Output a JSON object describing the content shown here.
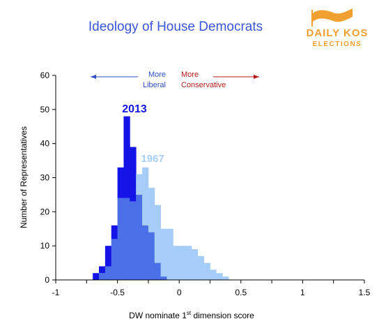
{
  "colors": {
    "series_2013": "#1414e6",
    "series_1967": "#a6cdf7",
    "overlap": "#4a6fe6",
    "title": "#3b55d9",
    "liberal": "#2e4fbf",
    "conservative": "#b31a1a",
    "logo": "#f0a030"
  },
  "logo": {
    "line1": "DAILY KOS",
    "line2": "ELECTIONS",
    "icon": "flag-icon"
  },
  "chart_data": {
    "type": "bar",
    "title": "Ideology of House Democrats",
    "xlabel_main": "DW nominate 1",
    "xlabel_sup": "st",
    "xlabel_rest": " dimension score",
    "ylabel": "Number of Representatives",
    "xlim": [
      -1,
      1.5
    ],
    "ylim": [
      0,
      60
    ],
    "xticks": [
      -1,
      -0.5,
      0,
      0.5,
      1,
      1.5
    ],
    "xtick_labels": [
      "-1",
      "-0.5",
      "0",
      "0.5",
      "1",
      "1.5"
    ],
    "yticks": [
      0,
      10,
      20,
      30,
      40,
      50,
      60
    ],
    "bin_width": 0.05,
    "bin_starts": [
      -0.75,
      -0.7,
      -0.65,
      -0.6,
      -0.55,
      -0.5,
      -0.45,
      -0.4,
      -0.35,
      -0.3,
      -0.25,
      -0.2,
      -0.15,
      -0.1,
      -0.05,
      0.0,
      0.05,
      0.1,
      0.15,
      0.2,
      0.25,
      0.3,
      0.35,
      0.4
    ],
    "series": [
      {
        "name": "2013",
        "values": [
          0,
          2,
          4,
          10,
          16,
          33,
          48,
          39,
          25,
          16,
          14,
          5,
          1,
          0,
          0,
          0,
          0,
          0,
          0,
          0,
          0,
          0,
          0,
          0
        ]
      },
      {
        "name": "1967",
        "values": [
          0,
          0,
          2,
          4,
          12,
          24,
          24,
          23,
          31,
          33,
          27,
          22,
          15,
          15,
          10,
          10,
          10,
          9,
          7,
          5,
          3,
          2,
          1,
          0
        ]
      }
    ],
    "series_labels": {
      "s2013": "2013",
      "s1967": "1967"
    },
    "annotations": {
      "liberal_line1": "More",
      "liberal_line2": "Liberal",
      "conservative_line1": "More",
      "conservative_line2": "Conservative"
    }
  }
}
